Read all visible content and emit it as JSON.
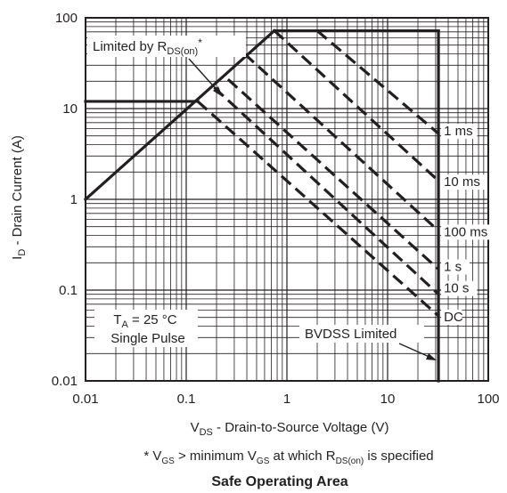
{
  "chart_data": {
    "type": "line",
    "title": "Safe Operating Area",
    "xlabel_main": "V",
    "xlabel_sub": "DS",
    "xlabel_rest": " - Drain-to-Source Voltage (V)",
    "ylabel_main": "I",
    "ylabel_sub": "D",
    "ylabel_rest": " - Drain Current (A)",
    "xscale": "log",
    "yscale": "log",
    "xlim": [
      0.01,
      100
    ],
    "ylim": [
      0.01,
      100
    ],
    "grid": true,
    "x_ticks": [
      "0.01",
      "0.1",
      "1",
      "10",
      "100"
    ],
    "y_ticks": [
      "0.01",
      "0.1",
      "1",
      "10",
      "100"
    ],
    "footnote": {
      "p1": "* V",
      "s1": "GS",
      "p2": " > minimum V",
      "s2": "GS",
      "p3": " at which R",
      "s3": "DS(on)",
      "p4": " is specified"
    },
    "annotations": {
      "rds_prefix": "Limited by R",
      "rds_sub": "DS(on)",
      "rds_suffix": "*",
      "ta_prefix": "T",
      "ta_sub": "A",
      "ta_suffix": " = 25 °C",
      "single_pulse": "Single Pulse",
      "bvdss": "BVDSS Limited"
    },
    "limits": {
      "rds_on_line": [
        [
          0.01,
          1
        ],
        [
          0.75,
          72
        ]
      ],
      "current_limit_pulsed": [
        [
          0.75,
          72
        ],
        [
          32,
          72
        ]
      ],
      "current_limit_continuous": [
        [
          0.01,
          12
        ],
        [
          0.13,
          12
        ]
      ],
      "bvdss_vertical": [
        [
          32,
          0.01
        ],
        [
          32,
          72
        ]
      ]
    },
    "series": [
      {
        "name": "1 ms",
        "points": [
          [
            2.0,
            72
          ],
          [
            32,
            5.3
          ]
        ]
      },
      {
        "name": "10 ms",
        "points": [
          [
            0.75,
            72
          ],
          [
            32,
            1.6
          ]
        ]
      },
      {
        "name": "100 ms",
        "points": [
          [
            0.38,
            40
          ],
          [
            32,
            0.45
          ]
        ]
      },
      {
        "name": "1 s",
        "points": [
          [
            0.26,
            21
          ],
          [
            32,
            0.17
          ]
        ]
      },
      {
        "name": "10 s",
        "points": [
          [
            0.19,
            17
          ],
          [
            32,
            0.09
          ]
        ]
      },
      {
        "name": "DC",
        "points": [
          [
            0.13,
            12
          ],
          [
            32,
            0.052
          ]
        ]
      }
    ]
  }
}
